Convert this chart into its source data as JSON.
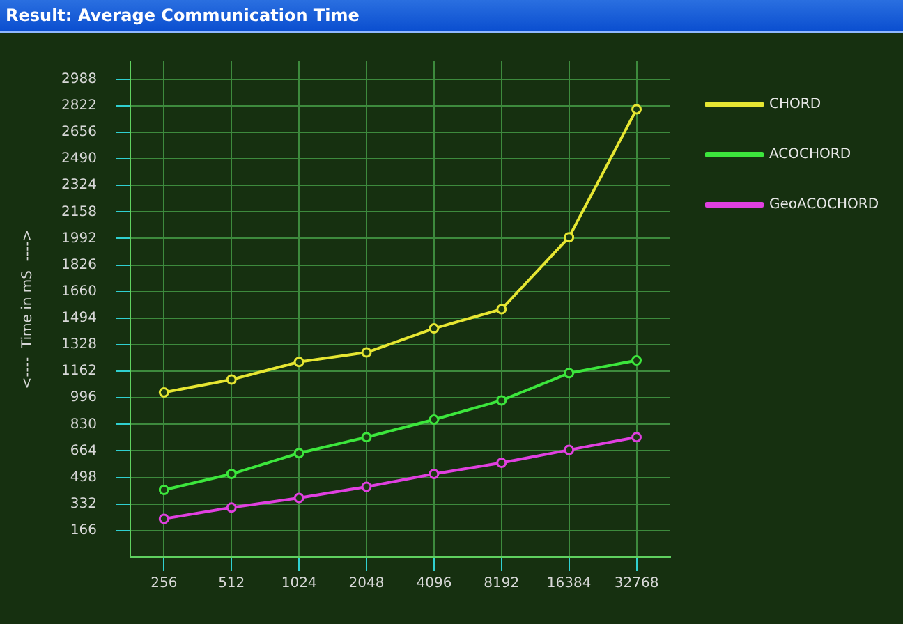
{
  "chart_data": {
    "type": "line",
    "title": "Result: Average Communication Time",
    "ylabel": "<----  Time in mS  ---->",
    "categories": [
      "256",
      "512",
      "1024",
      "2048",
      "4096",
      "8192",
      "16384",
      "32768"
    ],
    "series": [
      {
        "name": "CHORD",
        "color": "#e6e632",
        "values": [
          1030,
          1110,
          1220,
          1280,
          1430,
          1550,
          2000,
          2800
        ]
      },
      {
        "name": "ACOCHORD",
        "color": "#3ce63c",
        "values": [
          420,
          520,
          650,
          750,
          860,
          980,
          1150,
          1230
        ]
      },
      {
        "name": "GeoACOCHORD",
        "color": "#e040e0",
        "values": [
          240,
          310,
          370,
          440,
          520,
          590,
          670,
          750
        ]
      }
    ],
    "ylim": [
      0,
      3100
    ],
    "yticks": [
      166,
      332,
      498,
      664,
      830,
      996,
      1162,
      1328,
      1494,
      1660,
      1826,
      1992,
      2158,
      2324,
      2490,
      2656,
      2822,
      2988
    ],
    "grid": true,
    "legend": "top right",
    "marker": "circle",
    "line_style": "solid"
  }
}
